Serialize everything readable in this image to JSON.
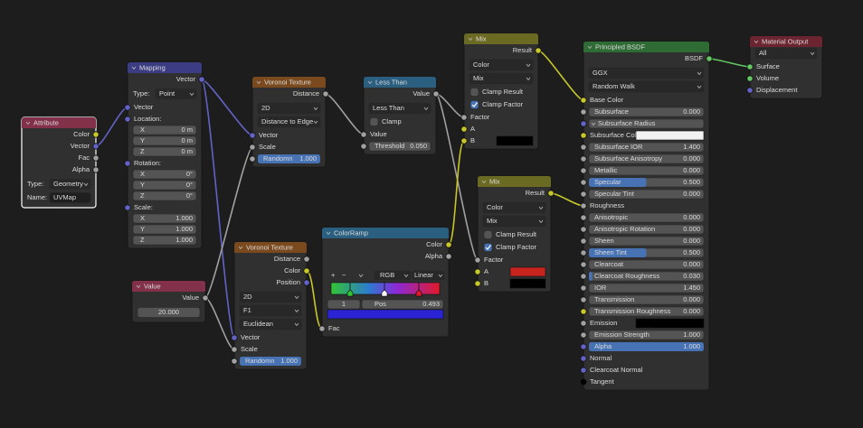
{
  "nodes": [
    {
      "title": "Attribute",
      "outputs": [
        "Color",
        "Vector",
        "Fac",
        "Alpha"
      ],
      "settings": [
        {
          "label": "Type:",
          "value": "Geometry"
        },
        {
          "label": "Name:",
          "text": "UVMap"
        }
      ],
      "inputs": []
    },
    {
      "title": "Mapping",
      "outputs": [
        "Vector"
      ],
      "settings": [
        {
          "label": "Type:",
          "value": "Point"
        }
      ],
      "inputs": [
        "Vector",
        {
          "label": "Location:",
          "fields": [
            {
              "label": "X",
              "value": "0 m"
            },
            {
              "label": "Y",
              "value": "0 m"
            },
            {
              "label": "Z",
              "value": "0 m"
            }
          ]
        },
        {
          "label": "Rotation:",
          "fields": [
            {
              "label": "X",
              "value": "0°"
            },
            {
              "label": "Y",
              "value": "0°"
            },
            {
              "label": "Z",
              "value": "0°"
            }
          ]
        },
        {
          "label": "Scale:",
          "fields": [
            {
              "label": "X",
              "value": "1.000"
            },
            {
              "label": "Y",
              "value": "1.000"
            },
            {
              "label": "Z",
              "value": "1.000"
            }
          ]
        }
      ]
    },
    {
      "title": "Value",
      "outputs": [
        "Value"
      ],
      "settings": [
        {
          "number": "20.000"
        }
      ],
      "inputs": []
    },
    {
      "title": "Voronoi Texture",
      "outputs": [
        "Distance"
      ],
      "settings": [
        "2D",
        "Distance to Edge"
      ],
      "inputs": [
        "Vector",
        "Scale",
        {
          "label": "Randomn",
          "value": "1.000",
          "factor": true
        }
      ]
    },
    {
      "title": "Voronoi Texture",
      "outputs": [
        "Distance",
        "Color",
        "Position"
      ],
      "settings": [
        "2D",
        "F1",
        "Euclidean"
      ],
      "inputs": [
        "Vector",
        "Scale",
        {
          "label": "Randomn",
          "value": "1.000",
          "factor": true
        }
      ]
    },
    {
      "title": "Less Than",
      "outputs": [
        "Value"
      ],
      "settings": [
        "Less Than",
        {
          "label": "Clamp",
          "checked": false
        }
      ],
      "inputs": [
        "Value",
        {
          "label": "Threshold",
          "value": "0.050"
        }
      ]
    },
    {
      "title": "ColorRamp",
      "outputs": [
        "Color",
        "Alpha"
      ],
      "settings": [
        {
          "buttons": [
            "+",
            "−"
          ],
          "mode": "RGB",
          "interpolation": "Linear",
          "index": "1",
          "pos_label": "Pos",
          "pos": "0.493"
        }
      ],
      "inputs": [
        "Fac"
      ]
    },
    {
      "title": "Mix",
      "outputs": [
        "Result"
      ],
      "settings": [
        "Color",
        "Mix",
        {
          "label": "Clamp Result",
          "checked": false
        },
        {
          "label": "Clamp Factor",
          "checked": true
        }
      ],
      "inputs": [
        "Factor",
        "A",
        {
          "label": "B",
          "swatch": "#000000"
        }
      ]
    },
    {
      "title": "Mix",
      "outputs": [
        "Result"
      ],
      "settings": [
        "Color",
        "Mix",
        {
          "label": "Clamp Result",
          "checked": false
        },
        {
          "label": "Clamp Factor",
          "checked": true
        }
      ],
      "inputs": [
        "Factor",
        {
          "label": "A",
          "swatch": "#c8241e"
        },
        {
          "label": "B",
          "swatch": "#000000"
        }
      ]
    },
    {
      "title": "Principled BSDF",
      "outputs": [
        "BSDF"
      ],
      "settings": [
        "GGX",
        "Random Walk"
      ],
      "inputs": [
        "Base Color",
        {
          "label": "Subsurface",
          "value": "0.000"
        },
        {
          "field": "Subsurface Radius"
        },
        {
          "label": "Subsurface Color",
          "swatch": "#f2f2f2"
        },
        {
          "label": "Subsurface IOR",
          "value": "1.400"
        },
        {
          "label": "Subsurface Anisotropy",
          "value": "0.000"
        },
        {
          "label": "Metallic",
          "value": "0.000"
        },
        {
          "label": "Specular",
          "value": "0.500",
          "factor": true
        },
        {
          "label": "Specular Tint",
          "value": "0.000"
        },
        "Roughness",
        {
          "label": "Anisotropic",
          "value": "0.000"
        },
        {
          "label": "Anisotropic Rotation",
          "value": "0.000"
        },
        {
          "label": "Sheen",
          "value": "0.000"
        },
        {
          "label": "Sheen Tint",
          "value": "0.500",
          "factor": true
        },
        {
          "label": "Clearcoat",
          "value": "0.000"
        },
        {
          "label": "Clearcoat Roughness",
          "value": "0.030",
          "factor": true
        },
        {
          "label": "IOR",
          "value": "1.450"
        },
        {
          "label": "Transmission",
          "value": "0.000"
        },
        {
          "label": "Transmission Roughness",
          "value": "0.000"
        },
        {
          "label": "Emission",
          "swatch": "#000000"
        },
        {
          "label": "Emission Strength",
          "value": "1.000"
        },
        {
          "label": "Alpha",
          "value": "1.000",
          "factor": true
        },
        "Normal",
        "Clearcoat Normal",
        "Tangent"
      ]
    },
    {
      "title": "Material Output",
      "outputs": [],
      "settings": [
        "All"
      ],
      "inputs": [
        "Surface",
        "Volume",
        "Displacement"
      ]
    }
  ]
}
